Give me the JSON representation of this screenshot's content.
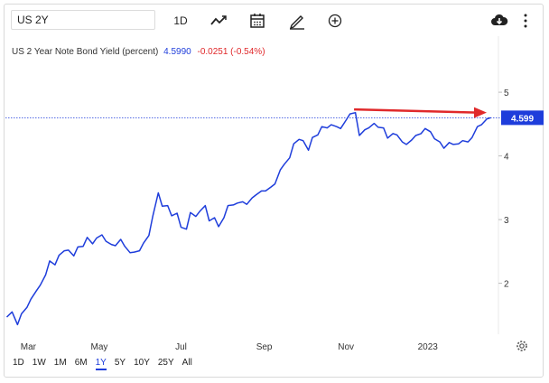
{
  "toolbar": {
    "symbol_value": "US 2Y",
    "interval_label": "1D",
    "icons": [
      "chart-type-icon",
      "calendar-icon",
      "draw-pencil-icon",
      "add-compare-icon",
      "download-cloud-icon",
      "more-vertical-icon"
    ]
  },
  "legend": {
    "series_name": "US 2 Year Note Bond Yield (percent)",
    "last_value": "4.5990",
    "change": "-0.0251 (-0.54%)"
  },
  "price_tag": "4.599",
  "ranges": [
    "1D",
    "1W",
    "1M",
    "6M",
    "1Y",
    "5Y",
    "10Y",
    "25Y",
    "All"
  ],
  "active_range": "1Y",
  "colors": {
    "line": "#1e3ddb",
    "arrow": "#e0292b",
    "change": "#e0292b",
    "tag": "#1e3ddb"
  },
  "chart_data": {
    "type": "line",
    "series": [
      {
        "x": [
          "2022-02-21",
          "2022-02-25",
          "2022-03-01",
          "2022-03-04",
          "2022-03-08",
          "2022-03-11",
          "2022-03-15",
          "2022-03-18",
          "2022-03-22",
          "2022-03-25",
          "2022-03-29",
          "2022-04-01",
          "2022-04-05",
          "2022-04-08",
          "2022-04-12",
          "2022-04-15",
          "2022-04-19",
          "2022-04-22",
          "2022-04-26",
          "2022-04-29",
          "2022-05-03",
          "2022-05-06",
          "2022-05-10",
          "2022-05-13",
          "2022-05-17",
          "2022-05-20",
          "2022-05-24",
          "2022-05-27",
          "2022-05-31",
          "2022-06-03",
          "2022-06-07",
          "2022-06-10",
          "2022-06-14",
          "2022-06-17",
          "2022-06-21",
          "2022-06-24",
          "2022-06-28",
          "2022-07-01",
          "2022-07-05",
          "2022-07-08",
          "2022-07-12",
          "2022-07-15",
          "2022-07-19",
          "2022-07-22",
          "2022-07-26",
          "2022-07-29",
          "2022-08-02",
          "2022-08-05",
          "2022-08-09",
          "2022-08-12",
          "2022-08-16",
          "2022-08-19",
          "2022-08-23",
          "2022-08-26",
          "2022-08-30",
          "2022-09-02",
          "2022-09-06",
          "2022-09-09",
          "2022-09-13",
          "2022-09-16",
          "2022-09-20",
          "2022-09-23",
          "2022-09-27",
          "2022-09-30",
          "2022-10-04",
          "2022-10-07",
          "2022-10-11",
          "2022-10-14",
          "2022-10-18",
          "2022-10-21",
          "2022-10-25",
          "2022-10-28",
          "2022-11-01",
          "2022-11-04",
          "2022-11-08",
          "2022-11-11",
          "2022-11-15",
          "2022-11-18",
          "2022-11-22",
          "2022-11-25",
          "2022-11-29",
          "2022-12-02",
          "2022-12-06",
          "2022-12-09",
          "2022-12-13",
          "2022-12-16",
          "2022-12-20",
          "2022-12-23",
          "2022-12-27",
          "2022-12-30",
          "2023-01-03",
          "2023-01-06",
          "2023-01-10",
          "2023-01-13",
          "2023-01-17",
          "2023-01-20",
          "2023-01-24",
          "2023-01-27",
          "2023-01-31",
          "2023-02-03",
          "2023-02-07",
          "2023-02-10",
          "2023-02-14",
          "2023-02-17"
        ],
        "values": [
          1.47,
          1.55,
          1.35,
          1.52,
          1.62,
          1.75,
          1.88,
          1.97,
          2.13,
          2.35,
          2.29,
          2.44,
          2.51,
          2.52,
          2.43,
          2.57,
          2.58,
          2.72,
          2.62,
          2.71,
          2.76,
          2.66,
          2.61,
          2.59,
          2.69,
          2.58,
          2.48,
          2.49,
          2.51,
          2.63,
          2.75,
          3.06,
          3.42,
          3.21,
          3.22,
          3.06,
          3.1,
          2.88,
          2.85,
          3.11,
          3.05,
          3.13,
          3.22,
          2.98,
          3.03,
          2.89,
          3.03,
          3.22,
          3.23,
          3.26,
          3.28,
          3.24,
          3.34,
          3.39,
          3.45,
          3.45,
          3.51,
          3.56,
          3.78,
          3.87,
          3.97,
          4.19,
          4.26,
          4.24,
          4.09,
          4.29,
          4.33,
          4.46,
          4.44,
          4.49,
          4.46,
          4.43,
          4.56,
          4.66,
          4.68,
          4.32,
          4.41,
          4.44,
          4.51,
          4.45,
          4.44,
          4.28,
          4.35,
          4.33,
          4.22,
          4.18,
          4.25,
          4.32,
          4.35,
          4.43,
          4.38,
          4.27,
          4.22,
          4.12,
          4.21,
          4.18,
          4.19,
          4.24,
          4.22,
          4.29,
          4.46,
          4.49,
          4.58,
          4.6
        ]
      }
    ],
    "x_ticks": [
      "Mar",
      "May",
      "Jul",
      "Sep",
      "Nov",
      "2023"
    ],
    "y_ticks": [
      2,
      3,
      4,
      5
    ],
    "ylim": [
      1.2,
      5.2
    ],
    "xlim": [
      "2022-02-20",
      "2023-02-20"
    ],
    "reference_line": 4.599,
    "grid": false,
    "annotation": "red arrow pointing right toward the latest value"
  }
}
